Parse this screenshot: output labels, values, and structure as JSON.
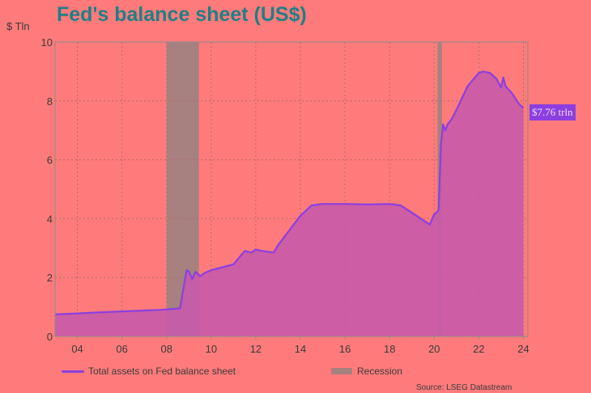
{
  "title": "Fed's balance sheet (US$)",
  "unit_label": "$ Tln",
  "source": "Source: LSEG Datastream",
  "end_label": "$7.76 trln",
  "legend": {
    "series": "Total assets on Fed balance sheet",
    "recession": "Recession"
  },
  "colors": {
    "background": "#ff7b7b",
    "series_line": "#8b3fe0",
    "series_fill": "#c85aaa",
    "recession": "#a78080",
    "title": "#1f7f85"
  },
  "chart_data": {
    "type": "area",
    "title": "Fed's balance sheet (US$)",
    "ylabel": "$ Tln",
    "xlabel": "",
    "xlim": [
      2003.0,
      2024.2
    ],
    "ylim": [
      0,
      10
    ],
    "grid": true,
    "legend_position": "bottom",
    "x_ticks": [
      2004,
      2006,
      2008,
      2010,
      2012,
      2014,
      2016,
      2018,
      2020,
      2022,
      2024
    ],
    "x_tick_labels": [
      "04",
      "06",
      "08",
      "10",
      "12",
      "14",
      "16",
      "18",
      "20",
      "22",
      "24"
    ],
    "y_ticks": [
      0,
      2,
      4,
      6,
      8,
      10
    ],
    "y_tick_labels": [
      "0",
      "2",
      "4",
      "6",
      "8",
      "10"
    ],
    "recessions": [
      {
        "start": 2008.0,
        "end": 2009.45
      },
      {
        "start": 2020.15,
        "end": 2020.35
      }
    ],
    "series": [
      {
        "name": "Total assets on Fed balance sheet",
        "x": [
          2003.0,
          2004.0,
          2005.0,
          2006.0,
          2007.0,
          2007.7,
          2008.6,
          2008.75,
          2008.9,
          2009.0,
          2009.15,
          2009.3,
          2009.5,
          2009.7,
          2010.0,
          2010.5,
          2011.0,
          2011.5,
          2011.8,
          2012.0,
          2012.3,
          2012.8,
          2013.0,
          2013.5,
          2014.0,
          2014.5,
          2015.0,
          2016.0,
          2017.0,
          2018.0,
          2018.5,
          2019.0,
          2019.5,
          2019.8,
          2020.0,
          2020.1,
          2020.2,
          2020.3,
          2020.4,
          2020.5,
          2020.6,
          2020.8,
          2021.0,
          2021.5,
          2022.0,
          2022.2,
          2022.5,
          2022.8,
          2023.0,
          2023.1,
          2023.2,
          2023.5,
          2023.8,
          2024.0
        ],
        "values": [
          0.75,
          0.78,
          0.82,
          0.85,
          0.88,
          0.9,
          0.95,
          1.6,
          2.25,
          2.2,
          1.95,
          2.2,
          2.05,
          2.15,
          2.25,
          2.35,
          2.45,
          2.9,
          2.85,
          2.95,
          2.9,
          2.85,
          3.1,
          3.6,
          4.1,
          4.45,
          4.5,
          4.5,
          4.48,
          4.5,
          4.45,
          4.2,
          3.95,
          3.8,
          4.15,
          4.2,
          4.3,
          6.5,
          7.2,
          7.0,
          7.2,
          7.4,
          7.7,
          8.5,
          8.95,
          9.0,
          8.95,
          8.75,
          8.45,
          8.8,
          8.5,
          8.25,
          7.9,
          7.76
        ]
      }
    ]
  }
}
